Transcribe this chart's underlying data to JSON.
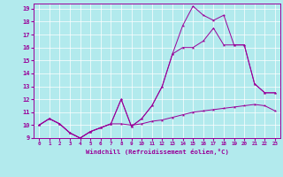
{
  "title": "",
  "xlabel": "Windchill (Refroidissement éolien,°C)",
  "bg_color": "#b2eaed",
  "line_color": "#990099",
  "grid_color": "#ffffff",
  "xlim": [
    -0.5,
    23.5
  ],
  "ylim": [
    9,
    19.4
  ],
  "xticks": [
    0,
    1,
    2,
    3,
    4,
    5,
    6,
    7,
    8,
    9,
    10,
    11,
    12,
    13,
    14,
    15,
    16,
    17,
    18,
    19,
    20,
    21,
    22,
    23
  ],
  "yticks": [
    9,
    10,
    11,
    12,
    13,
    14,
    15,
    16,
    17,
    18,
    19
  ],
  "line1_x": [
    0,
    1,
    2,
    3,
    4,
    5,
    6,
    7,
    8,
    9,
    10,
    11,
    12,
    13,
    14,
    15,
    16,
    17,
    18,
    19,
    20,
    21,
    22,
    23
  ],
  "line1_y": [
    10.0,
    10.5,
    10.1,
    9.4,
    9.0,
    9.5,
    9.8,
    10.1,
    10.1,
    10.0,
    10.1,
    10.3,
    10.4,
    10.6,
    10.8,
    11.0,
    11.1,
    11.2,
    11.3,
    11.4,
    11.5,
    11.6,
    11.5,
    11.1
  ],
  "line2_x": [
    0,
    1,
    2,
    3,
    4,
    5,
    6,
    7,
    8,
    9,
    10,
    11,
    12,
    13,
    14,
    15,
    16,
    17,
    18,
    19,
    20,
    21,
    22,
    23
  ],
  "line2_y": [
    10.0,
    10.5,
    10.1,
    9.4,
    9.0,
    9.5,
    9.8,
    10.1,
    12.0,
    9.9,
    10.5,
    11.5,
    13.0,
    15.5,
    17.7,
    19.2,
    18.5,
    18.1,
    18.5,
    16.2,
    16.2,
    13.2,
    12.5,
    12.5
  ],
  "line3_x": [
    0,
    1,
    2,
    3,
    4,
    5,
    6,
    7,
    8,
    9,
    10,
    11,
    12,
    13,
    14,
    15,
    16,
    17,
    18,
    19,
    20,
    21,
    22,
    23
  ],
  "line3_y": [
    10.0,
    10.5,
    10.1,
    9.4,
    9.0,
    9.5,
    9.8,
    10.1,
    12.0,
    9.9,
    10.5,
    11.5,
    13.0,
    15.5,
    16.0,
    16.0,
    16.5,
    17.5,
    16.2,
    16.2,
    16.2,
    13.2,
    12.5,
    12.5
  ]
}
